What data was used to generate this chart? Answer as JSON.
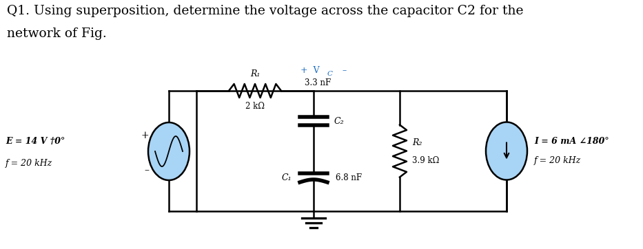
{
  "title_line1": "Q1. Using superposition, determine the voltage across the capacitor C2 for the",
  "title_line2": "network of Fig.",
  "title_fontsize": 13.5,
  "bg_color": "#ffffff",
  "circuit": {
    "voltage_source": {
      "label1": "E = 14 V †0°",
      "label2": "f = 20 kHz",
      "plus": "+",
      "minus": "–"
    },
    "current_source": {
      "label1": "I = 6 mA ∠180°",
      "label2": "f = 20 kHz"
    },
    "R1": {
      "label": "R₁",
      "value": "2 kΩ"
    },
    "C1": {
      "label": "C₁",
      "value": "6.8 nF"
    },
    "C2": {
      "label": "C₂",
      "value": "3.3 nF"
    },
    "Vc": {
      "label1": "+  V",
      "label2": "C",
      "label3": "  –"
    },
    "R2": {
      "label": "R₂",
      "value": "3.9 kΩ"
    },
    "source_color": "#a8d4f5",
    "wire_color": "#000000",
    "line_width": 1.8
  }
}
